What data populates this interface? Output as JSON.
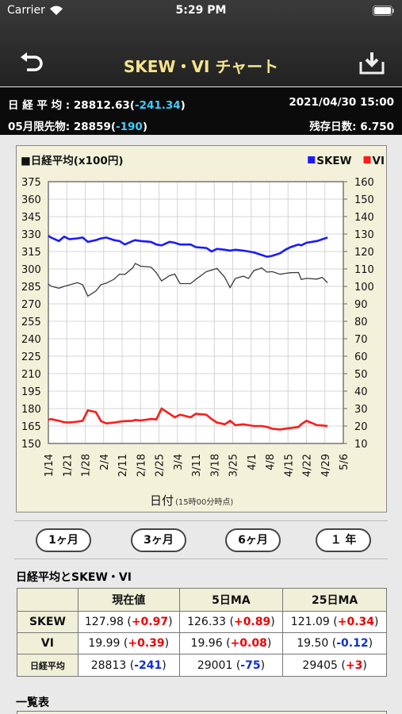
{
  "status_bar": {
    "carrier": "Carrier",
    "time": "5:29 PM"
  },
  "nav": {
    "title": "SKEW・VI チャート"
  },
  "info": {
    "nikkei_label": "日 経 平 均 :",
    "nikkei_value": "28812.63",
    "nikkei_change": "-241.34",
    "datetime": "2021/04/30 15:00",
    "futures_label": "05月限先物:",
    "futures_value": "28859",
    "futures_change": "-190",
    "remaining_label": "残存日数:",
    "remaining_value": "6.750"
  },
  "chart_data": {
    "type": "line",
    "title": "■日経平均(x100円)",
    "xlabel": "日付",
    "xlabel_note": "(15時00分時点)",
    "grid": true,
    "x": [
      "1/14",
      "1/15",
      "1/18",
      "1/20",
      "1/22",
      "1/25",
      "1/27",
      "1/29",
      "2/1",
      "2/3",
      "2/5",
      "2/8",
      "2/10",
      "2/12",
      "2/15",
      "2/16",
      "2/18",
      "2/22",
      "2/24",
      "2/26",
      "3/1",
      "3/3",
      "3/5",
      "3/9",
      "3/11",
      "3/15",
      "3/17",
      "3/19",
      "3/22",
      "3/24",
      "3/26",
      "3/29",
      "3/31",
      "4/2",
      "4/5",
      "4/7",
      "4/9",
      "4/12",
      "4/14",
      "4/16",
      "4/19",
      "4/20",
      "4/22",
      "4/26",
      "4/28",
      "4/30"
    ],
    "xlim": [
      "1/14",
      "5/6"
    ],
    "xticks": [
      "1/14",
      "1/21",
      "1/28",
      "2/4",
      "2/11",
      "2/18",
      "2/25",
      "3/4",
      "3/11",
      "3/18",
      "3/25",
      "4/1",
      "4/8",
      "4/15",
      "4/22",
      "4/29",
      "5/6"
    ],
    "ylim": [
      150,
      375
    ],
    "yticks": [
      150,
      165,
      180,
      195,
      210,
      225,
      240,
      255,
      270,
      285,
      300,
      315,
      330,
      345,
      360,
      375
    ],
    "y2lim": [
      10,
      160
    ],
    "y2ticks": [
      10,
      20,
      30,
      40,
      50,
      60,
      70,
      80,
      90,
      100,
      110,
      120,
      130,
      140,
      150,
      160
    ],
    "series": [
      {
        "color": "#3a3a3a",
        "values": [
          287,
          285.2,
          283.4,
          285,
          286.3,
          288.2,
          286.4,
          276.6,
          281,
          286.5,
          287.8,
          291.2,
          295.6,
          295.2,
          300.8,
          304.7,
          302.4,
          301.6,
          296.7,
          289.7,
          294.2,
          295.6,
          287.4,
          287.4,
          291.1,
          297.7,
          299,
          300.5,
          292.8,
          284,
          291.8,
          293.8,
          291.8,
          298.5,
          300.9,
          297.3,
          297.7,
          295.4,
          296.2,
          296.8,
          296.9,
          291,
          291.9,
          291.3,
          292.8,
          288.13
        ]
      },
      {
        "name": "SKEW",
        "color": "#1a1aff",
        "axis": "y2",
        "values": [
          129,
          128,
          126,
          128.5,
          127,
          127.5,
          128,
          125.5,
          126.5,
          127.5,
          128,
          126.5,
          126,
          124,
          126,
          126.5,
          126,
          125.5,
          124,
          123.5,
          125.5,
          125,
          124,
          124,
          122.5,
          122,
          120,
          121.5,
          121,
          120.5,
          121,
          120.5,
          120,
          119.5,
          118,
          117,
          117.5,
          119,
          121,
          122.5,
          124,
          123.5,
          125,
          126,
          127,
          127.98
        ]
      },
      {
        "name": "VI",
        "color": "#ff1a1a",
        "axis": "y2",
        "values": [
          23.5,
          24,
          23,
          22.2,
          22,
          22.5,
          23,
          29,
          28,
          22.8,
          21.5,
          22,
          22.5,
          22.8,
          23,
          23.5,
          23.2,
          24,
          23.8,
          30,
          27,
          25,
          26.5,
          25,
          27,
          26.5,
          24,
          22,
          21,
          23,
          20.5,
          21,
          20.5,
          20,
          20,
          19.5,
          18.5,
          18,
          18.5,
          18.8,
          19.5,
          21,
          23,
          20.5,
          20.3,
          19.99
        ]
      }
    ]
  },
  "period_buttons": [
    "1ヶ月",
    "3ヶ月",
    "6ヶ月",
    "１ 年"
  ],
  "summary_table": {
    "title": "日経平均とSKEW・VI",
    "columns": [
      "現在値",
      "5日MA",
      "25日MA"
    ],
    "rows": [
      {
        "label": "SKEW",
        "cells": [
          {
            "value": "127.98",
            "change": "+0.97"
          },
          {
            "value": "126.33",
            "change": "+0.89"
          },
          {
            "value": "121.09",
            "change": "+0.34"
          }
        ]
      },
      {
        "label": "VI",
        "cells": [
          {
            "value": "19.99",
            "change": "+0.39"
          },
          {
            "value": "19.96",
            "change": "+0.08"
          },
          {
            "value": "19.50",
            "change": "-0.12"
          }
        ]
      },
      {
        "label": "日経平均",
        "cells": [
          {
            "value": "28813",
            "change": "-241"
          },
          {
            "value": "29001",
            "change": "-75"
          },
          {
            "value": "29405",
            "change": "+3"
          }
        ]
      }
    ]
  },
  "list_title": "一覧表"
}
